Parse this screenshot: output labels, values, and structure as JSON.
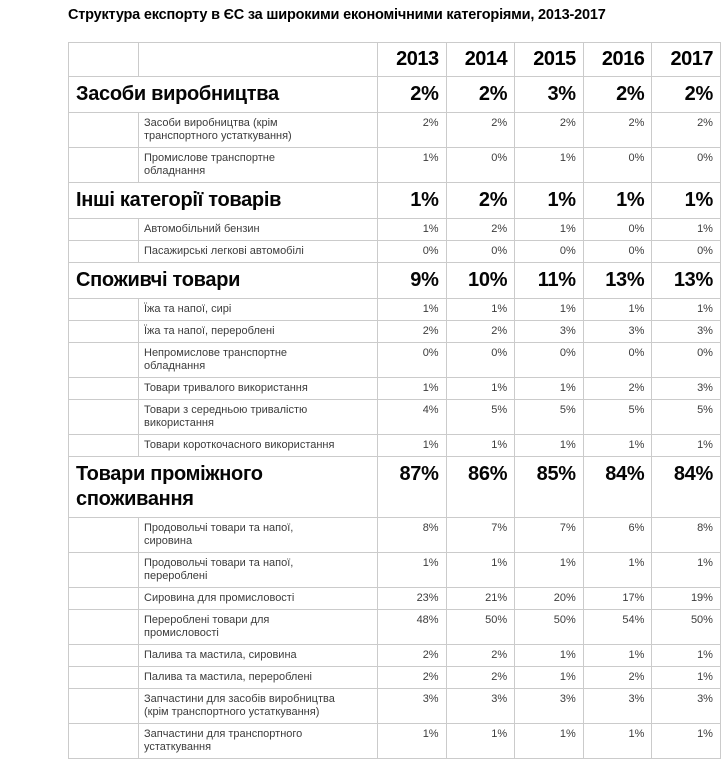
{
  "title": "Структура експорту в ЄС за широкими економічними категоріями, 2013-2017",
  "chart_data": {
    "type": "table",
    "title": "Структура експорту в ЄС за широкими економічними категоріями, 2013-2017",
    "columns": [
      "2013",
      "2014",
      "2015",
      "2016",
      "2017"
    ],
    "value_unit": "percent",
    "sections": [
      {
        "category": "Засоби виробництва",
        "values": [
          "2%",
          "2%",
          "3%",
          "2%",
          "2%"
        ],
        "rows": [
          {
            "label": "Засоби виробництва (крім транспортного устаткування)",
            "values": [
              "2%",
              "2%",
              "2%",
              "2%",
              "2%"
            ]
          },
          {
            "label": "Промислове транспортне обладнання",
            "values": [
              "1%",
              "0%",
              "1%",
              "0%",
              "0%"
            ]
          }
        ]
      },
      {
        "category": "Інші категорії товарів",
        "values": [
          "1%",
          "2%",
          "1%",
          "1%",
          "1%"
        ],
        "rows": [
          {
            "label": "Автомобільний бензин",
            "values": [
              "1%",
              "2%",
              "1%",
              "0%",
              "1%"
            ]
          },
          {
            "label": "Пасажирські легкові автомобілі",
            "values": [
              "0%",
              "0%",
              "0%",
              "0%",
              "0%"
            ]
          }
        ]
      },
      {
        "category": "Споживчі товари",
        "values": [
          "9%",
          "10%",
          "11%",
          "13%",
          "13%"
        ],
        "rows": [
          {
            "label": "Їжа та напої, сирі",
            "values": [
              "1%",
              "1%",
              "1%",
              "1%",
              "1%"
            ]
          },
          {
            "label": "Їжа та напої, перероблені",
            "values": [
              "2%",
              "2%",
              "3%",
              "3%",
              "3%"
            ]
          },
          {
            "label": "Непромислове транспортне обладнання",
            "values": [
              "0%",
              "0%",
              "0%",
              "0%",
              "0%"
            ]
          },
          {
            "label": "Товари тривалого використання",
            "values": [
              "1%",
              "1%",
              "1%",
              "2%",
              "3%"
            ]
          },
          {
            "label": "Товари з середньою тривалістю використання",
            "values": [
              "4%",
              "5%",
              "5%",
              "5%",
              "5%"
            ]
          },
          {
            "label": "Товари короткочасного використання",
            "values": [
              "1%",
              "1%",
              "1%",
              "1%",
              "1%"
            ]
          }
        ]
      },
      {
        "category": "Товари проміжного споживання",
        "values": [
          "87%",
          "86%",
          "85%",
          "84%",
          "84%"
        ],
        "rows": [
          {
            "label": "Продовольчі товари та напої, сировина",
            "values": [
              "8%",
              "7%",
              "7%",
              "6%",
              "8%"
            ]
          },
          {
            "label": "Продовольчі товари та напої, перероблені",
            "values": [
              "1%",
              "1%",
              "1%",
              "1%",
              "1%"
            ]
          },
          {
            "label": "Сировина для промисловості",
            "values": [
              "23%",
              "21%",
              "20%",
              "17%",
              "19%"
            ]
          },
          {
            "label": "Перероблені товари для промисловості",
            "values": [
              "48%",
              "50%",
              "50%",
              "54%",
              "50%"
            ]
          },
          {
            "label": "Палива та мастила, сировина",
            "values": [
              "2%",
              "2%",
              "1%",
              "1%",
              "1%"
            ]
          },
          {
            "label": "Палива та мастила, перероблені",
            "values": [
              "2%",
              "2%",
              "1%",
              "2%",
              "1%"
            ]
          },
          {
            "label": "Запчастини для засобів виробництва (крім транспортного устаткування)",
            "values": [
              "3%",
              "3%",
              "3%",
              "3%",
              "3%"
            ]
          },
          {
            "label": "Запчастини для транспортного устаткування",
            "values": [
              "1%",
              "1%",
              "1%",
              "1%",
              "1%"
            ]
          }
        ]
      }
    ],
    "layout": {
      "grid": true,
      "border_color": "#cbcbcb",
      "category_text_color": "#050505",
      "row_text_color": "#3c3c3c",
      "background_color": "#ffffff"
    }
  }
}
